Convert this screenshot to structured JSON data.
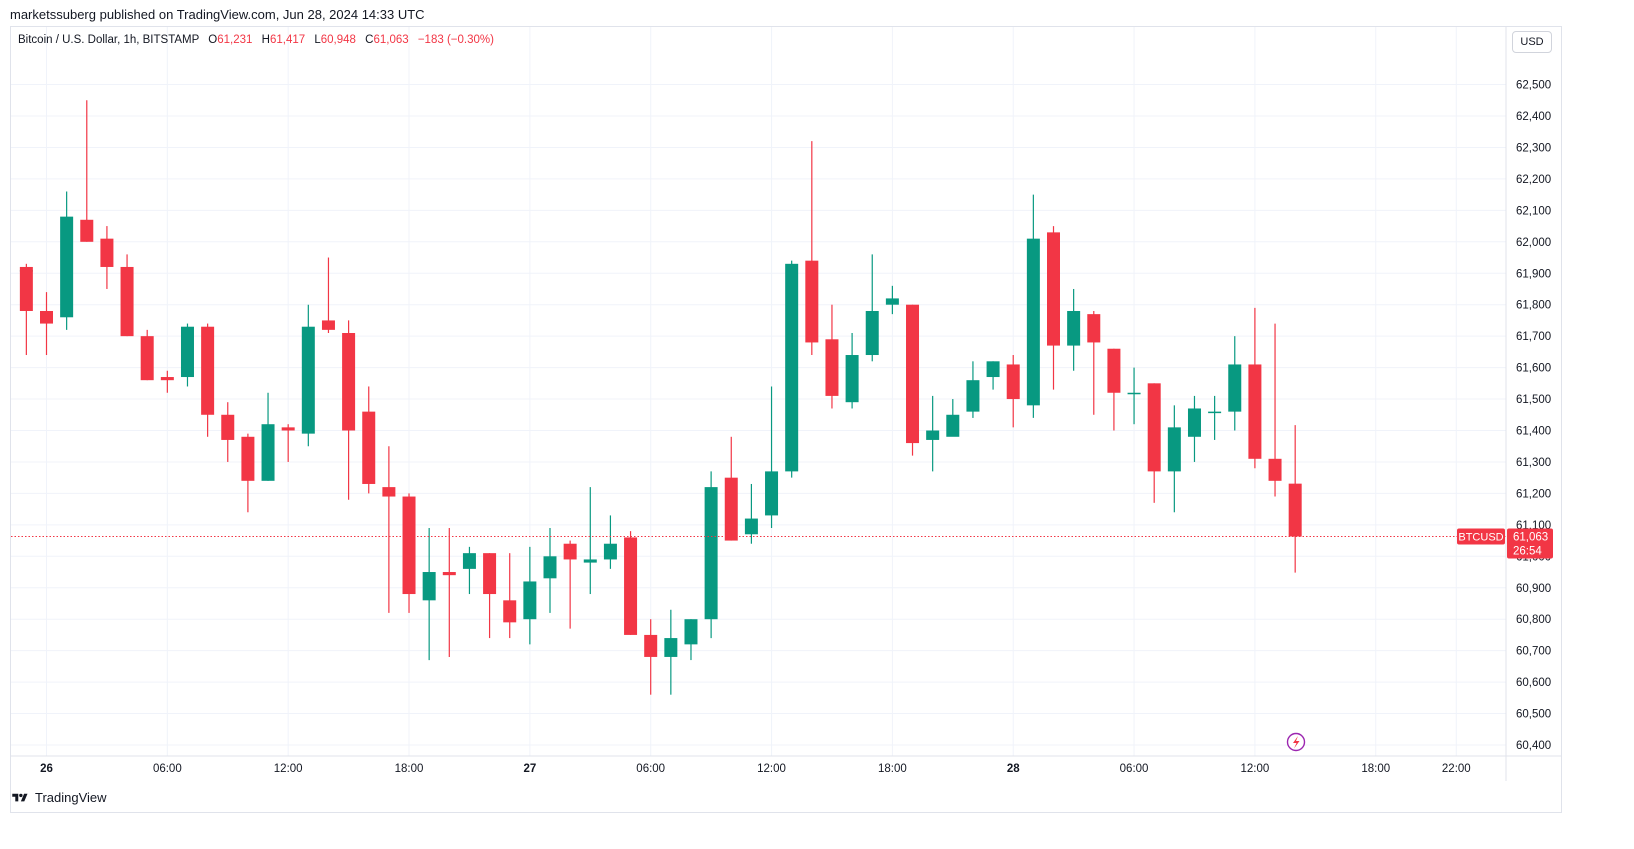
{
  "publisher": "marketssuberg published on TradingView.com, Jun 28, 2024 14:33 UTC",
  "legend": {
    "symbol": "Bitcoin / U.S. Dollar, 1h, BITSTAMP",
    "open_label": "O",
    "open": "61,231",
    "high_label": "H",
    "high": "61,417",
    "low_label": "L",
    "low": "60,948",
    "close_label": "C",
    "close": "61,063",
    "change": "−183 (−0.30%)"
  },
  "currency": "USD",
  "price_tag": {
    "name": "BTCUSD",
    "value": "61,063",
    "countdown": "26:54"
  },
  "footer": {
    "brand": "TradingView"
  },
  "colors": {
    "up": "#089981",
    "down": "#f23645",
    "grid": "#f0f3fa"
  },
  "chart_data": {
    "type": "candlestick",
    "ylim": [
      60350,
      62570
    ],
    "y_ticks": [
      60400,
      60500,
      60600,
      60700,
      60800,
      60900,
      61000,
      61100,
      61200,
      61300,
      61400,
      61500,
      61600,
      61700,
      61800,
      61900,
      62000,
      62100,
      62200,
      62300,
      62400,
      62500
    ],
    "y_tick_labels": [
      "60,400",
      "60,500",
      "60,600",
      "60,700",
      "60,800",
      "60,900",
      "61,000",
      "61,100",
      "61,200",
      "61,300",
      "61,400",
      "61,500",
      "61,600",
      "61,700",
      "61,800",
      "61,900",
      "62,000",
      "62,100",
      "62,200",
      "62,300",
      "62,400",
      "62,500"
    ],
    "x_ticks": [
      {
        "label": "26",
        "hour": 24,
        "bold": true
      },
      {
        "label": "06:00",
        "hour": 30
      },
      {
        "label": "12:00",
        "hour": 36
      },
      {
        "label": "18:00",
        "hour": 42
      },
      {
        "label": "27",
        "hour": 48,
        "bold": true
      },
      {
        "label": "06:00",
        "hour": 54
      },
      {
        "label": "12:00",
        "hour": 60
      },
      {
        "label": "18:00",
        "hour": 66
      },
      {
        "label": "28",
        "hour": 72,
        "bold": true
      },
      {
        "label": "06:00",
        "hour": 78
      },
      {
        "label": "12:00",
        "hour": 84
      },
      {
        "label": "18:00",
        "hour": 90
      },
      {
        "label": "22:00",
        "hour": 94
      }
    ],
    "last_price": 61063,
    "candles": [
      [
        23,
        61910,
        61910,
        61910,
        61910
      ],
      [
        23,
        61920,
        61930,
        61640,
        61780
      ],
      [
        24,
        61780,
        61840,
        61640,
        61740
      ],
      [
        25,
        61760,
        62160,
        61720,
        62080
      ],
      [
        26,
        62070,
        62450,
        62000,
        62000
      ],
      [
        27,
        62010,
        62050,
        61850,
        61920
      ],
      [
        28,
        61920,
        61960,
        61700,
        61700
      ],
      [
        29,
        61700,
        61720,
        61560,
        61560
      ],
      [
        30,
        61570,
        61590,
        61520,
        61560
      ],
      [
        31,
        61570,
        61740,
        61540,
        61730
      ],
      [
        32,
        61730,
        61740,
        61380,
        61450
      ],
      [
        33,
        61450,
        61490,
        61300,
        61370
      ],
      [
        34,
        61380,
        61390,
        61140,
        61240
      ],
      [
        35,
        61240,
        61520,
        61240,
        61420
      ],
      [
        36,
        61410,
        61420,
        61300,
        61400
      ],
      [
        37,
        61390,
        61800,
        61350,
        61730
      ],
      [
        38,
        61750,
        61950,
        61710,
        61720
      ],
      [
        39,
        61710,
        61750,
        61180,
        61400
      ],
      [
        40,
        61460,
        61540,
        61200,
        61230
      ],
      [
        41,
        61220,
        61350,
        60820,
        61190
      ],
      [
        42,
        61190,
        61200,
        60820,
        60880
      ],
      [
        43,
        60860,
        61090,
        60670,
        60950
      ],
      [
        44,
        60950,
        61090,
        60680,
        60940
      ],
      [
        45,
        60960,
        61030,
        60880,
        61010
      ],
      [
        46,
        61010,
        61010,
        60740,
        60880
      ],
      [
        47,
        60860,
        61010,
        60740,
        60790
      ],
      [
        48,
        60800,
        61030,
        60720,
        60920
      ],
      [
        49,
        60930,
        61090,
        60820,
        61000
      ],
      [
        50,
        61040,
        61050,
        60770,
        60990
      ],
      [
        51,
        60980,
        61220,
        60880,
        60990
      ],
      [
        52,
        60990,
        61130,
        60960,
        61040
      ],
      [
        53,
        61060,
        61080,
        60750,
        60750
      ],
      [
        54,
        60750,
        60800,
        60560,
        60680
      ],
      [
        55,
        60680,
        60830,
        60560,
        60740
      ],
      [
        56,
        60720,
        60800,
        60670,
        60800
      ],
      [
        57,
        60800,
        61270,
        60740,
        61220
      ],
      [
        58,
        61250,
        61380,
        61050,
        61050
      ],
      [
        59,
        61070,
        61230,
        61040,
        61120
      ],
      [
        60,
        61130,
        61540,
        61090,
        61270
      ],
      [
        61,
        61270,
        61940,
        61250,
        61930
      ],
      [
        62,
        61940,
        62320,
        61640,
        61680
      ],
      [
        63,
        61690,
        61800,
        61470,
        61510
      ],
      [
        64,
        61490,
        61710,
        61470,
        61640
      ],
      [
        65,
        61640,
        61960,
        61620,
        61780
      ],
      [
        66,
        61800,
        61860,
        61770,
        61820
      ],
      [
        67,
        61800,
        61800,
        61320,
        61360
      ],
      [
        68,
        61370,
        61510,
        61270,
        61400
      ],
      [
        69,
        61380,
        61500,
        61390,
        61450
      ],
      [
        70,
        61460,
        61620,
        61440,
        61560
      ],
      [
        71,
        61570,
        61620,
        61530,
        61620
      ],
      [
        72,
        61610,
        61640,
        61410,
        61500
      ],
      [
        73,
        61480,
        62150,
        61440,
        62010
      ],
      [
        74,
        62030,
        62050,
        61530,
        61670
      ],
      [
        75,
        61670,
        61850,
        61590,
        61780
      ],
      [
        76,
        61770,
        61780,
        61450,
        61680
      ],
      [
        77,
        61660,
        61660,
        61400,
        61520
      ],
      [
        78,
        61520,
        61600,
        61420,
        61520
      ],
      [
        79,
        61550,
        61550,
        61170,
        61270
      ],
      [
        80,
        61270,
        61480,
        61140,
        61410
      ],
      [
        81,
        61380,
        61510,
        61300,
        61470
      ],
      [
        82,
        61460,
        61510,
        61370,
        61460
      ],
      [
        83,
        61460,
        61700,
        61400,
        61610
      ],
      [
        84,
        61610,
        61790,
        61280,
        61310
      ],
      [
        85,
        61310,
        61740,
        61190,
        61240
      ],
      [
        86,
        61231,
        61417,
        60948,
        61063
      ]
    ]
  }
}
